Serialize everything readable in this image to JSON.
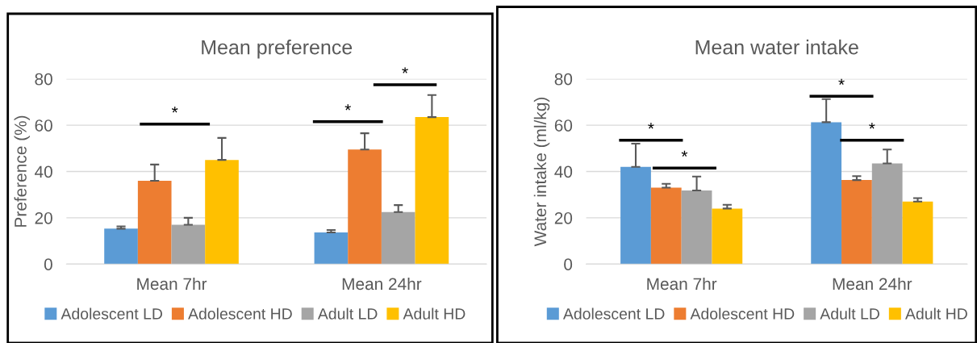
{
  "chart_data": [
    {
      "type": "bar",
      "title": "Mean preference",
      "ylabel": "Preference (%)",
      "categories": [
        "Mean 7hr",
        "Mean 24hr"
      ],
      "series": [
        {
          "name": "Adolescent LD",
          "color": "#5b9bd5",
          "values": [
            15.3,
            13.7
          ],
          "errors": [
            [
              15.3,
              16.3
            ],
            [
              13.7,
              14.7
            ]
          ]
        },
        {
          "name": "Adolescent HD",
          "color": "#ed7d31",
          "values": [
            36,
            49.5
          ],
          "errors": [
            [
              36,
              43
            ],
            [
              49.5,
              56.5
            ]
          ]
        },
        {
          "name": "Adult LD",
          "color": "#a5a5a5",
          "values": [
            17,
            22.5
          ],
          "errors": [
            [
              17,
              20
            ],
            [
              22.5,
              25.5
            ]
          ]
        },
        {
          "name": "Adult HD",
          "color": "#ffc000",
          "values": [
            45,
            63.5
          ],
          "errors": [
            [
              45,
              54.5
            ],
            [
              63.5,
              73
            ]
          ]
        }
      ],
      "ylim": [
        0,
        80
      ],
      "yticks": [
        0,
        20,
        40,
        60,
        80
      ],
      "grid": "y",
      "legend": "bottom",
      "annotations": [
        "*",
        "*",
        "*"
      ]
    },
    {
      "type": "bar",
      "title": "Mean water intake",
      "ylabel": "Water intake (ml/kg)",
      "categories": [
        "Mean 7hr",
        "Mean 24hr"
      ],
      "series": [
        {
          "name": "Adolescent LD",
          "color": "#5b9bd5",
          "values": [
            42,
            61.3
          ],
          "errors": [
            [
              42,
              52
            ],
            [
              61.3,
              71.3
            ]
          ]
        },
        {
          "name": "Adolescent HD",
          "color": "#ed7d31",
          "values": [
            33,
            36.3
          ],
          "errors": [
            [
              33,
              34.7
            ],
            [
              36.3,
              38
            ]
          ]
        },
        {
          "name": "Adult LD",
          "color": "#a5a5a5",
          "values": [
            31.8,
            43.5
          ],
          "errors": [
            [
              31.8,
              37.8
            ],
            [
              43.5,
              49.5
            ]
          ]
        },
        {
          "name": "Adult HD",
          "color": "#ffc000",
          "values": [
            24,
            27
          ],
          "errors": [
            [
              24,
              25.6
            ],
            [
              27,
              28.5
            ]
          ]
        }
      ],
      "ylim": [
        0,
        80
      ],
      "yticks": [
        0,
        20,
        40,
        60,
        80
      ],
      "grid": "y",
      "legend": "bottom",
      "annotations": [
        "*",
        "*",
        "*",
        "*"
      ]
    }
  ]
}
